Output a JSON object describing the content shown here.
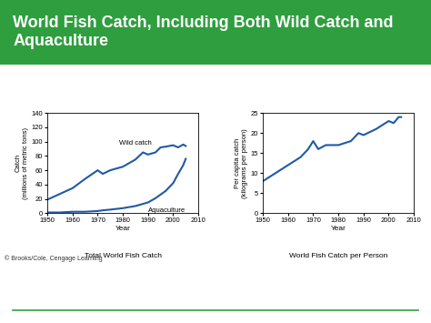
{
  "slide_title": "World Fish Catch, Including Both Wild Catch and Aquaculture",
  "credit": "© Brooks/Cole, Cengage Learning",
  "chart_data": [
    {
      "type": "line",
      "title": "Total World Fish Catch",
      "x_label": "Year",
      "y_label": "Catch\n(millions of metric tons)",
      "x": [
        1950,
        1955,
        1960,
        1965,
        1970,
        1972,
        1975,
        1980,
        1985,
        1988,
        1990,
        1993,
        1995,
        1997,
        2000,
        2002,
        2004,
        2005
      ],
      "series": [
        {
          "name": "Wild catch",
          "color": "#1f5aa6",
          "values": [
            19,
            27,
            35,
            48,
            60,
            55,
            60,
            65,
            75,
            85,
            82,
            85,
            92,
            93,
            95,
            92,
            96,
            94
          ]
        },
        {
          "name": "Aquaculture",
          "color": "#1f5aa6",
          "values": [
            1,
            1,
            2,
            2,
            3,
            4,
            5,
            7,
            10,
            13,
            15,
            21,
            26,
            31,
            42,
            55,
            67,
            76
          ]
        }
      ],
      "xlim": [
        1950,
        2010
      ],
      "xticks": [
        1950,
        1960,
        1970,
        1980,
        1990,
        2000,
        2010
      ],
      "ylim": [
        0,
        140
      ],
      "yticks": [
        0,
        20,
        40,
        60,
        80,
        100,
        120,
        140
      ],
      "grid": false
    },
    {
      "type": "line",
      "title": "World Fish Catch per Person",
      "x_label": "Year",
      "y_label": "Per capita catch\n(kilograms per person)",
      "x": [
        1950,
        1955,
        1960,
        1965,
        1968,
        1970,
        1972,
        1975,
        1980,
        1985,
        1988,
        1990,
        1995,
        2000,
        2002,
        2004,
        2005
      ],
      "series": [
        {
          "color": "#1f5aa6",
          "values": [
            8,
            10,
            12,
            14,
            16,
            18,
            16,
            17,
            17,
            18,
            20,
            19.5,
            21,
            23,
            22.5,
            24,
            24
          ]
        }
      ],
      "xlim": [
        1950,
        2010
      ],
      "xticks": [
        1950,
        1960,
        1970,
        1980,
        1990,
        2000,
        2010
      ],
      "ylim": [
        0,
        25
      ],
      "yticks": [
        0,
        5,
        10,
        15,
        20,
        25
      ],
      "grid": false
    }
  ]
}
